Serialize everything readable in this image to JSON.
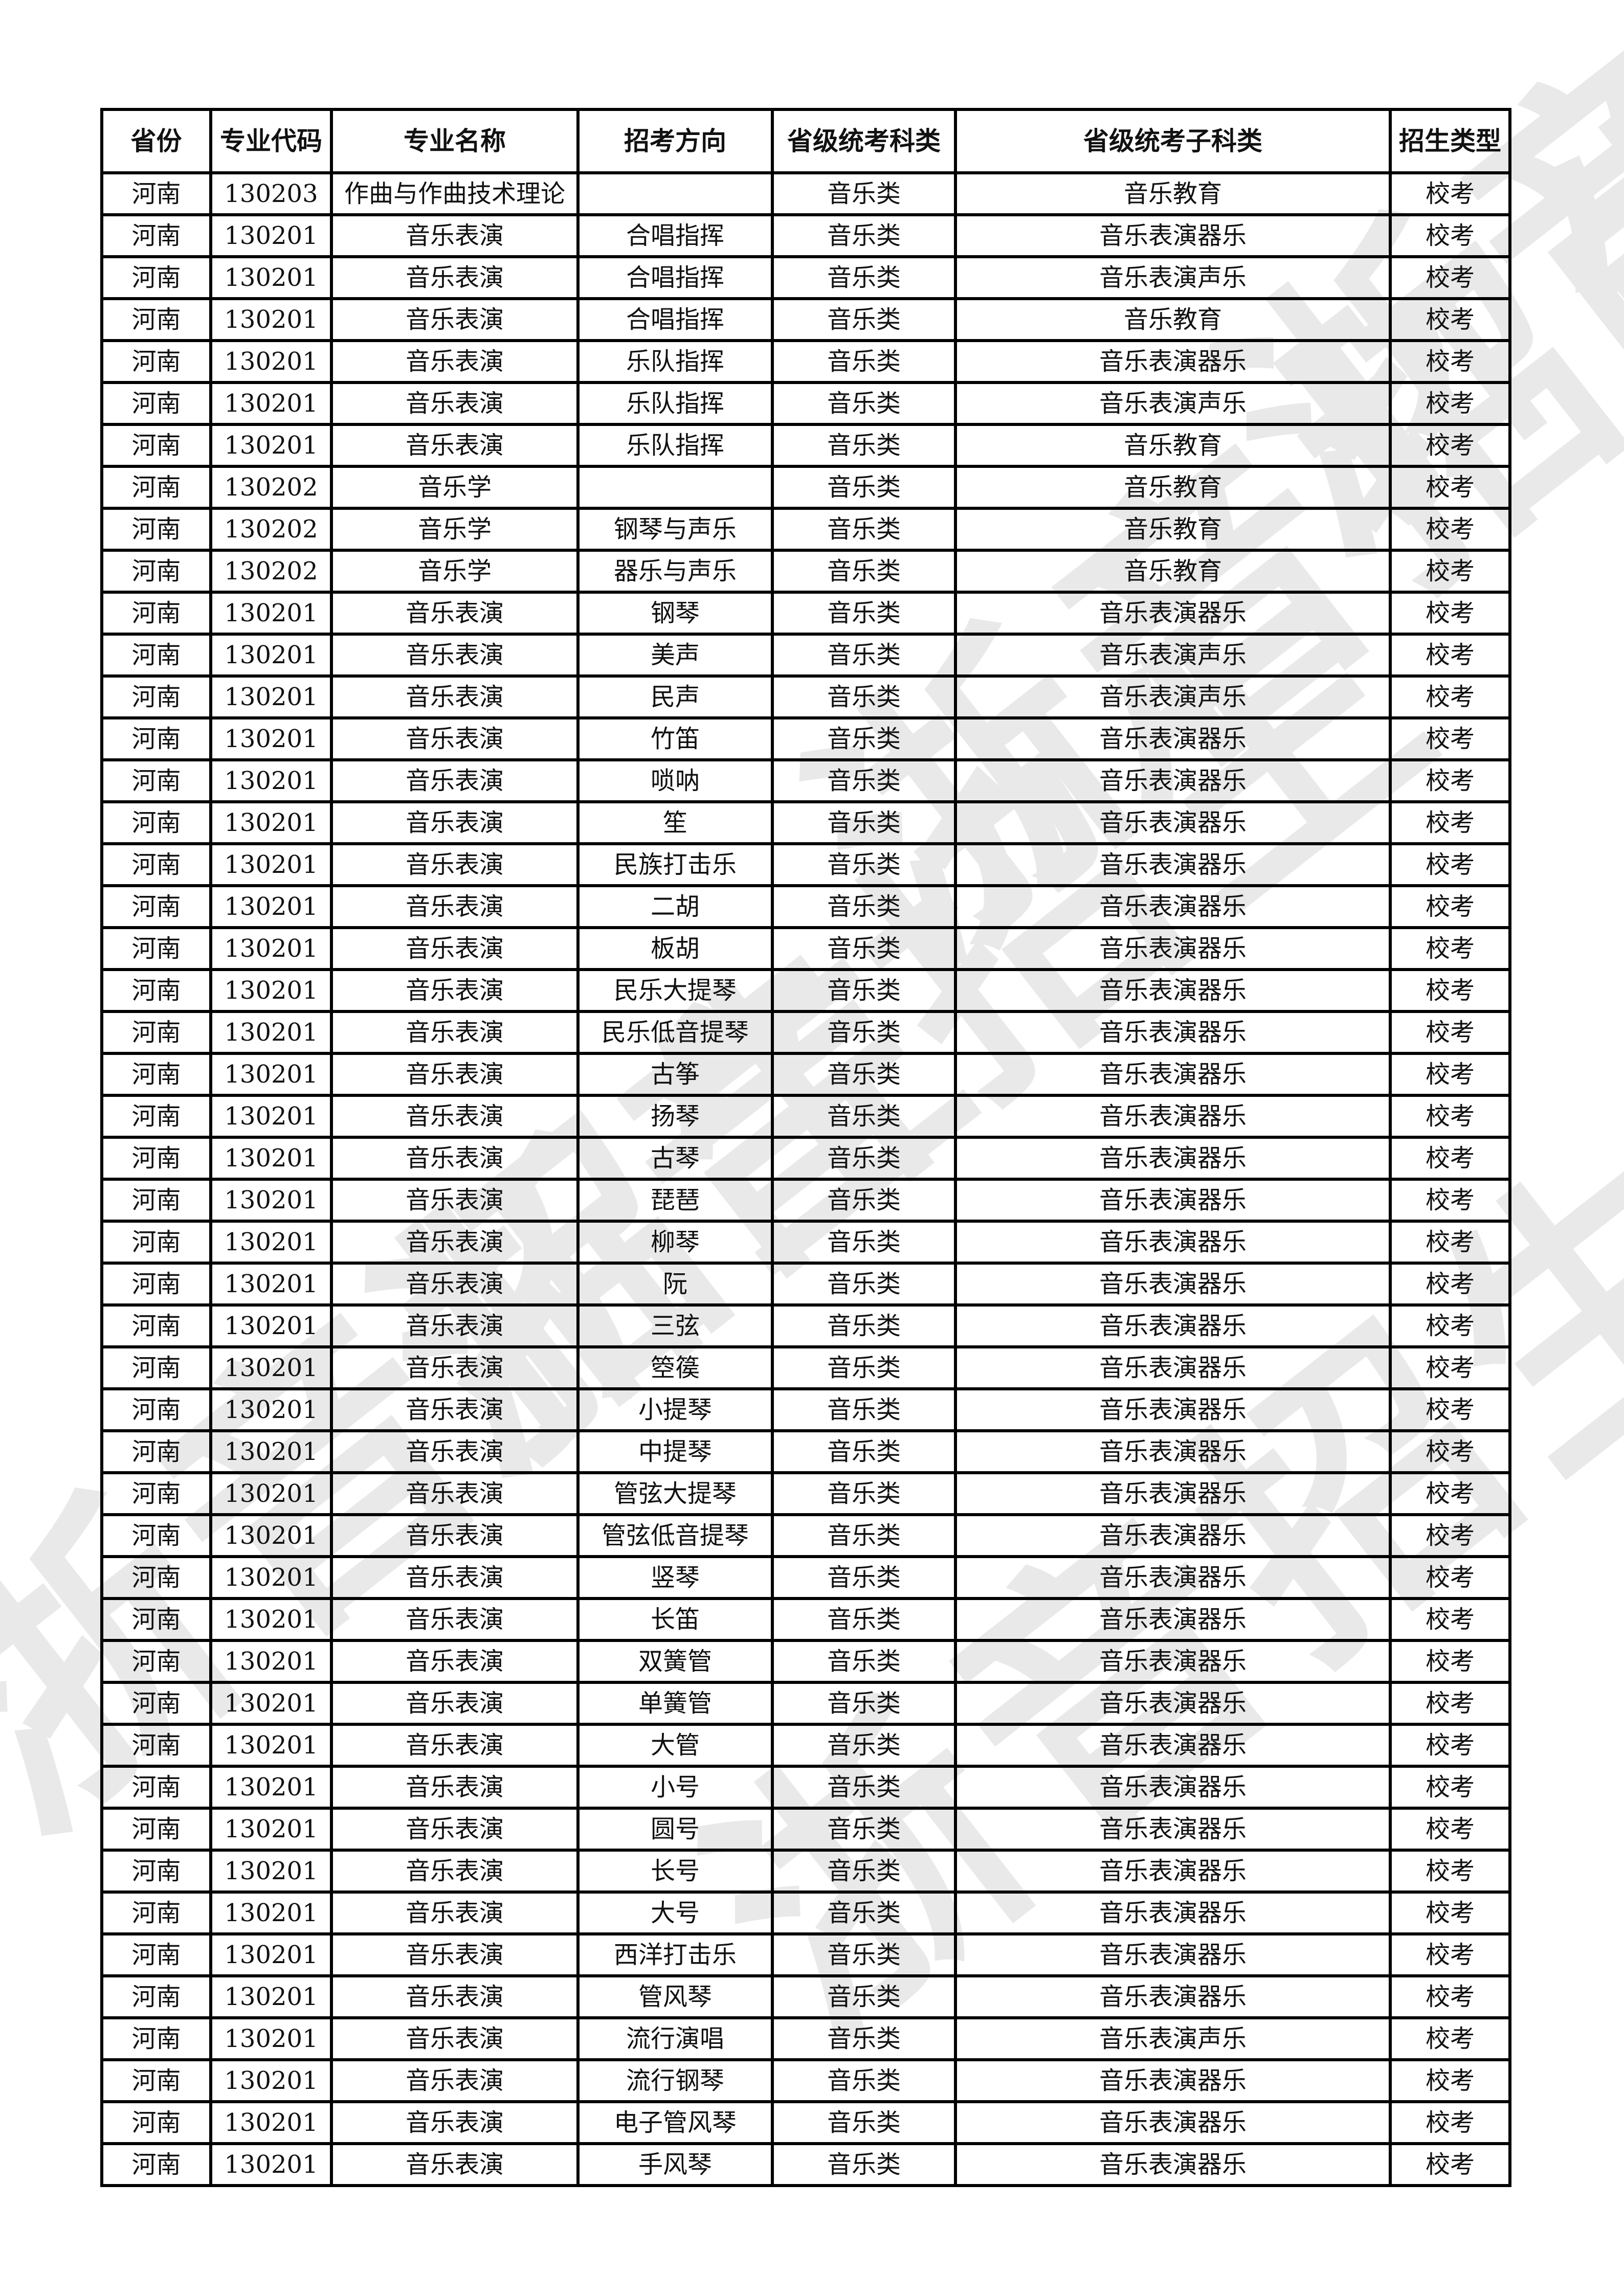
{
  "watermark": "浙音招生",
  "headers": [
    "省份",
    "专业代码",
    "专业名称",
    "招考方向",
    "省级统考科类",
    "省级统考子科类",
    "招生类型"
  ],
  "rows": [
    [
      "河南",
      "130203",
      "作曲与作曲技术理论",
      "",
      "音乐类",
      "音乐教育",
      "校考"
    ],
    [
      "河南",
      "130201",
      "音乐表演",
      "合唱指挥",
      "音乐类",
      "音乐表演器乐",
      "校考"
    ],
    [
      "河南",
      "130201",
      "音乐表演",
      "合唱指挥",
      "音乐类",
      "音乐表演声乐",
      "校考"
    ],
    [
      "河南",
      "130201",
      "音乐表演",
      "合唱指挥",
      "音乐类",
      "音乐教育",
      "校考"
    ],
    [
      "河南",
      "130201",
      "音乐表演",
      "乐队指挥",
      "音乐类",
      "音乐表演器乐",
      "校考"
    ],
    [
      "河南",
      "130201",
      "音乐表演",
      "乐队指挥",
      "音乐类",
      "音乐表演声乐",
      "校考"
    ],
    [
      "河南",
      "130201",
      "音乐表演",
      "乐队指挥",
      "音乐类",
      "音乐教育",
      "校考"
    ],
    [
      "河南",
      "130202",
      "音乐学",
      "",
      "音乐类",
      "音乐教育",
      "校考"
    ],
    [
      "河南",
      "130202",
      "音乐学",
      "钢琴与声乐",
      "音乐类",
      "音乐教育",
      "校考"
    ],
    [
      "河南",
      "130202",
      "音乐学",
      "器乐与声乐",
      "音乐类",
      "音乐教育",
      "校考"
    ],
    [
      "河南",
      "130201",
      "音乐表演",
      "钢琴",
      "音乐类",
      "音乐表演器乐",
      "校考"
    ],
    [
      "河南",
      "130201",
      "音乐表演",
      "美声",
      "音乐类",
      "音乐表演声乐",
      "校考"
    ],
    [
      "河南",
      "130201",
      "音乐表演",
      "民声",
      "音乐类",
      "音乐表演声乐",
      "校考"
    ],
    [
      "河南",
      "130201",
      "音乐表演",
      "竹笛",
      "音乐类",
      "音乐表演器乐",
      "校考"
    ],
    [
      "河南",
      "130201",
      "音乐表演",
      "唢呐",
      "音乐类",
      "音乐表演器乐",
      "校考"
    ],
    [
      "河南",
      "130201",
      "音乐表演",
      "笙",
      "音乐类",
      "音乐表演器乐",
      "校考"
    ],
    [
      "河南",
      "130201",
      "音乐表演",
      "民族打击乐",
      "音乐类",
      "音乐表演器乐",
      "校考"
    ],
    [
      "河南",
      "130201",
      "音乐表演",
      "二胡",
      "音乐类",
      "音乐表演器乐",
      "校考"
    ],
    [
      "河南",
      "130201",
      "音乐表演",
      "板胡",
      "音乐类",
      "音乐表演器乐",
      "校考"
    ],
    [
      "河南",
      "130201",
      "音乐表演",
      "民乐大提琴",
      "音乐类",
      "音乐表演器乐",
      "校考"
    ],
    [
      "河南",
      "130201",
      "音乐表演",
      "民乐低音提琴",
      "音乐类",
      "音乐表演器乐",
      "校考"
    ],
    [
      "河南",
      "130201",
      "音乐表演",
      "古筝",
      "音乐类",
      "音乐表演器乐",
      "校考"
    ],
    [
      "河南",
      "130201",
      "音乐表演",
      "扬琴",
      "音乐类",
      "音乐表演器乐",
      "校考"
    ],
    [
      "河南",
      "130201",
      "音乐表演",
      "古琴",
      "音乐类",
      "音乐表演器乐",
      "校考"
    ],
    [
      "河南",
      "130201",
      "音乐表演",
      "琵琶",
      "音乐类",
      "音乐表演器乐",
      "校考"
    ],
    [
      "河南",
      "130201",
      "音乐表演",
      "柳琴",
      "音乐类",
      "音乐表演器乐",
      "校考"
    ],
    [
      "河南",
      "130201",
      "音乐表演",
      "阮",
      "音乐类",
      "音乐表演器乐",
      "校考"
    ],
    [
      "河南",
      "130201",
      "音乐表演",
      "三弦",
      "音乐类",
      "音乐表演器乐",
      "校考"
    ],
    [
      "河南",
      "130201",
      "音乐表演",
      "箜篌",
      "音乐类",
      "音乐表演器乐",
      "校考"
    ],
    [
      "河南",
      "130201",
      "音乐表演",
      "小提琴",
      "音乐类",
      "音乐表演器乐",
      "校考"
    ],
    [
      "河南",
      "130201",
      "音乐表演",
      "中提琴",
      "音乐类",
      "音乐表演器乐",
      "校考"
    ],
    [
      "河南",
      "130201",
      "音乐表演",
      "管弦大提琴",
      "音乐类",
      "音乐表演器乐",
      "校考"
    ],
    [
      "河南",
      "130201",
      "音乐表演",
      "管弦低音提琴",
      "音乐类",
      "音乐表演器乐",
      "校考"
    ],
    [
      "河南",
      "130201",
      "音乐表演",
      "竖琴",
      "音乐类",
      "音乐表演器乐",
      "校考"
    ],
    [
      "河南",
      "130201",
      "音乐表演",
      "长笛",
      "音乐类",
      "音乐表演器乐",
      "校考"
    ],
    [
      "河南",
      "130201",
      "音乐表演",
      "双簧管",
      "音乐类",
      "音乐表演器乐",
      "校考"
    ],
    [
      "河南",
      "130201",
      "音乐表演",
      "单簧管",
      "音乐类",
      "音乐表演器乐",
      "校考"
    ],
    [
      "河南",
      "130201",
      "音乐表演",
      "大管",
      "音乐类",
      "音乐表演器乐",
      "校考"
    ],
    [
      "河南",
      "130201",
      "音乐表演",
      "小号",
      "音乐类",
      "音乐表演器乐",
      "校考"
    ],
    [
      "河南",
      "130201",
      "音乐表演",
      "圆号",
      "音乐类",
      "音乐表演器乐",
      "校考"
    ],
    [
      "河南",
      "130201",
      "音乐表演",
      "长号",
      "音乐类",
      "音乐表演器乐",
      "校考"
    ],
    [
      "河南",
      "130201",
      "音乐表演",
      "大号",
      "音乐类",
      "音乐表演器乐",
      "校考"
    ],
    [
      "河南",
      "130201",
      "音乐表演",
      "西洋打击乐",
      "音乐类",
      "音乐表演器乐",
      "校考"
    ],
    [
      "河南",
      "130201",
      "音乐表演",
      "管风琴",
      "音乐类",
      "音乐表演器乐",
      "校考"
    ],
    [
      "河南",
      "130201",
      "音乐表演",
      "流行演唱",
      "音乐类",
      "音乐表演声乐",
      "校考"
    ],
    [
      "河南",
      "130201",
      "音乐表演",
      "流行钢琴",
      "音乐类",
      "音乐表演器乐",
      "校考"
    ],
    [
      "河南",
      "130201",
      "音乐表演",
      "电子管风琴",
      "音乐类",
      "音乐表演器乐",
      "校考"
    ],
    [
      "河南",
      "130201",
      "音乐表演",
      "手风琴",
      "音乐类",
      "音乐表演器乐",
      "校考"
    ]
  ]
}
